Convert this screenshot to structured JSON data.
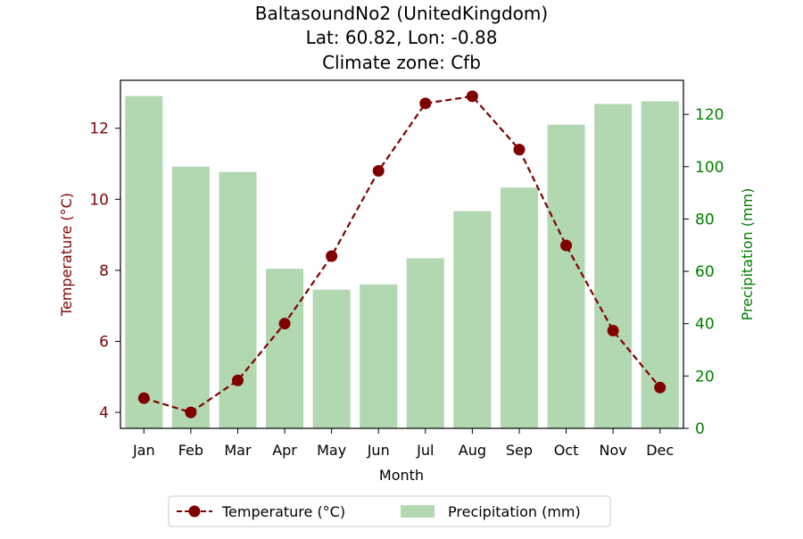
{
  "title": {
    "line1": "BaltasoundNo2 (UnitedKingdom)",
    "line2": "Lat: 60.82, Lon: -0.88",
    "line3": "Climate zone: Cfb"
  },
  "colors": {
    "temperature": "#800000",
    "precipitation": "#b2d8b2",
    "precip_axis": "#008000",
    "axis": "#000000"
  },
  "chart_data": {
    "type": "bar+line",
    "categories": [
      "Jan",
      "Feb",
      "Mar",
      "Apr",
      "May",
      "Jun",
      "Jul",
      "Aug",
      "Sep",
      "Oct",
      "Nov",
      "Dec"
    ],
    "series": [
      {
        "name": "Temperature (°C)",
        "type": "line",
        "axis": "left",
        "values": [
          4.4,
          4.0,
          4.9,
          6.5,
          8.4,
          10.8,
          12.7,
          12.9,
          11.4,
          8.7,
          6.3,
          4.7
        ]
      },
      {
        "name": "Precipitation (mm)",
        "type": "bar",
        "axis": "right",
        "values": [
          127,
          100,
          98,
          61,
          53,
          55,
          65,
          83,
          92,
          116,
          124,
          125
        ]
      }
    ],
    "xlabel": "Month",
    "ylabel_left": "Temperature (°C)",
    "ylabel_right": "Precipitation (mm)",
    "ylim_left": [
      3.55,
      13.35
    ],
    "ylim_right": [
      0,
      133
    ],
    "yticks_left": [
      4,
      6,
      8,
      10,
      12
    ],
    "yticks_right": [
      0,
      20,
      40,
      60,
      80,
      100,
      120
    ],
    "grid": false,
    "legend_position": "bottom-center"
  }
}
